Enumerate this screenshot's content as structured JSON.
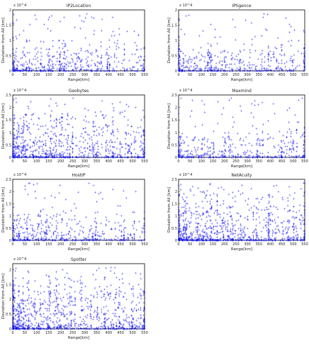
{
  "figure": {
    "point_color": "#0000ee",
    "axis_color": "#000000"
  },
  "chart_data": [
    {
      "type": "scatter",
      "title": "IP2Location",
      "xlabel": "Range[km]",
      "ylabel": "Deviation from All [km]",
      "xlim": [
        0,
        550
      ],
      "ylim": [
        0,
        2.0
      ],
      "x_ticks": [
        "0",
        "50",
        "100",
        "150",
        "200",
        "250",
        "300",
        "350",
        "400",
        "450",
        "500",
        "550"
      ],
      "y_ticks": [
        "0",
        "0.5",
        "1",
        "1.5",
        "2"
      ],
      "y_exponent": "x 10^4",
      "density": 0.35,
      "seed": 11
    },
    {
      "type": "scatter",
      "title": "IPligence",
      "xlabel": "Range[km]",
      "ylabel": "Deviation from All [km]",
      "xlim": [
        0,
        550
      ],
      "ylim": [
        0,
        2.0
      ],
      "x_ticks": [
        "0",
        "50",
        "100",
        "150",
        "200",
        "250",
        "300",
        "350",
        "400",
        "450",
        "500",
        "550"
      ],
      "y_ticks": [
        "0",
        "0.5",
        "1",
        "1.5",
        "2"
      ],
      "y_exponent": "x 10^4",
      "density": 0.25,
      "seed": 23
    },
    {
      "type": "scatter",
      "title": "Geobytes",
      "xlabel": "Range[km]",
      "ylabel": "Deviation from All [km]",
      "xlim": [
        0,
        550
      ],
      "ylim": [
        0,
        2.5
      ],
      "x_ticks": [
        "0",
        "50",
        "100",
        "150",
        "200",
        "250",
        "300",
        "350",
        "400",
        "450",
        "500",
        "550"
      ],
      "y_ticks": [
        "0",
        "0.5",
        "1",
        "1.5",
        "2",
        "2.5"
      ],
      "y_exponent": "x 10^4",
      "density": 0.8,
      "seed": 37
    },
    {
      "type": "scatter",
      "title": "Maxmind",
      "xlabel": "Range[km]",
      "ylabel": "Deviation from All [km]",
      "xlim": [
        0,
        550
      ],
      "ylim": [
        0,
        2.5
      ],
      "x_ticks": [
        "0",
        "50",
        "100",
        "150",
        "200",
        "250",
        "300",
        "350",
        "400",
        "450",
        "500",
        "550"
      ],
      "y_ticks": [
        "0",
        "0.5",
        "1",
        "1.5",
        "2",
        "2.5"
      ],
      "y_exponent": "x 10^4",
      "density": 0.25,
      "seed": 41
    },
    {
      "type": "scatter",
      "title": "HostIP",
      "xlabel": "Range[km]",
      "ylabel": "Deviation from All [km]",
      "xlim": [
        0,
        550
      ],
      "ylim": [
        0,
        2.5
      ],
      "x_ticks": [
        "0",
        "50",
        "100",
        "150",
        "200",
        "250",
        "300",
        "350",
        "400",
        "450",
        "500",
        "550"
      ],
      "y_ticks": [
        "0",
        "0.5",
        "1",
        "1.5",
        "2",
        "2.5"
      ],
      "y_exponent": "x 10^4",
      "density": 0.3,
      "seed": 53
    },
    {
      "type": "scatter",
      "title": "NetAcuity",
      "xlabel": "Range[km]",
      "ylabel": "Deviation from All [km]",
      "xlim": [
        0,
        550
      ],
      "ylim": [
        0,
        2.5
      ],
      "x_ticks": [
        "0",
        "50",
        "100",
        "150",
        "200",
        "250",
        "300",
        "350",
        "400",
        "450",
        "500",
        "550"
      ],
      "y_ticks": [
        "0",
        "0.5",
        "1",
        "1.5",
        "2",
        "2.5"
      ],
      "y_exponent": "x 10^4",
      "density": 0.9,
      "seed": 67
    },
    {
      "type": "scatter",
      "title": "Spotter",
      "xlabel": "Range[km]",
      "ylabel": "Deviation from All [km]",
      "xlim": [
        0,
        550
      ],
      "ylim": [
        0,
        2.2
      ],
      "x_ticks": [
        "0",
        "50",
        "100",
        "150",
        "200",
        "250",
        "300",
        "350",
        "400",
        "450",
        "500",
        "550"
      ],
      "y_ticks": [
        "0",
        "0.5",
        "1",
        "1.5",
        "2"
      ],
      "y_exponent": "x 10^4",
      "density": 1.0,
      "seed": 79
    }
  ]
}
